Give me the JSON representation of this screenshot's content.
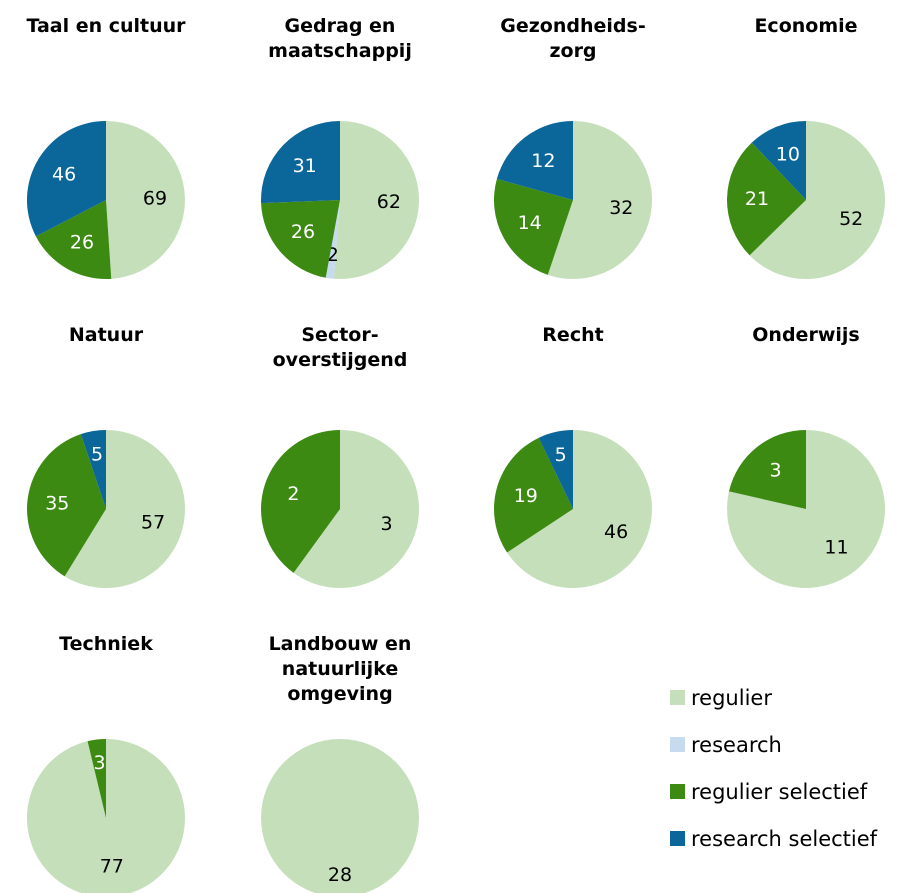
{
  "chart_data": {
    "type": "pie",
    "legend": {
      "position": "bottom-right",
      "entries": [
        {
          "name": "regulier",
          "color": "#c5dfbb"
        },
        {
          "name": "research",
          "color": "#c7dbef"
        },
        {
          "name": "regulier selectief",
          "color": "#3d8a12"
        },
        {
          "name": "research selectief",
          "color": "#0b6699"
        }
      ]
    },
    "pies": [
      {
        "title": [
          "Taal en cultuur"
        ],
        "slices": [
          {
            "series": "regulier",
            "value": 69
          },
          {
            "series": "regulier selectief",
            "value": 26
          },
          {
            "series": "research selectief",
            "value": 46
          }
        ]
      },
      {
        "title": [
          "Gedrag en",
          "maatschappij"
        ],
        "slices": [
          {
            "series": "regulier",
            "value": 62
          },
          {
            "series": "regulier selectief",
            "value": 26
          },
          {
            "series": "research selectief",
            "value": 31
          },
          {
            "series": "research",
            "value": 2
          }
        ]
      },
      {
        "title": [
          "Gezondheids-",
          "zorg"
        ],
        "slices": [
          {
            "series": "regulier",
            "value": 32
          },
          {
            "series": "regulier selectief",
            "value": 14
          },
          {
            "series": "research selectief",
            "value": 12
          }
        ]
      },
      {
        "title": [
          "Economie"
        ],
        "slices": [
          {
            "series": "regulier",
            "value": 52
          },
          {
            "series": "regulier selectief",
            "value": 21
          },
          {
            "series": "research selectief",
            "value": 10
          }
        ]
      },
      {
        "title": [
          "Natuur"
        ],
        "slices": [
          {
            "series": "regulier",
            "value": 57
          },
          {
            "series": "regulier selectief",
            "value": 35
          },
          {
            "series": "research selectief",
            "value": 5
          }
        ]
      },
      {
        "title": [
          "Sector-",
          "overstijgend"
        ],
        "slices": [
          {
            "series": "regulier",
            "value": 3
          },
          {
            "series": "regulier selectief",
            "value": 2
          }
        ]
      },
      {
        "title": [
          "Recht"
        ],
        "slices": [
          {
            "series": "regulier",
            "value": 46
          },
          {
            "series": "regulier selectief",
            "value": 19
          },
          {
            "series": "research selectief",
            "value": 5
          }
        ]
      },
      {
        "title": [
          "Onderwijs"
        ],
        "slices": [
          {
            "series": "regulier",
            "value": 11
          },
          {
            "series": "regulier selectief",
            "value": 3
          }
        ]
      },
      {
        "title": [
          "Techniek"
        ],
        "slices": [
          {
            "series": "regulier",
            "value": 77
          },
          {
            "series": "regulier selectief",
            "value": 3
          }
        ]
      },
      {
        "title": [
          "Landbouw en",
          "natuurlijke",
          "omgeving"
        ],
        "slices": [
          {
            "series": "regulier",
            "value": 28
          }
        ]
      }
    ]
  }
}
